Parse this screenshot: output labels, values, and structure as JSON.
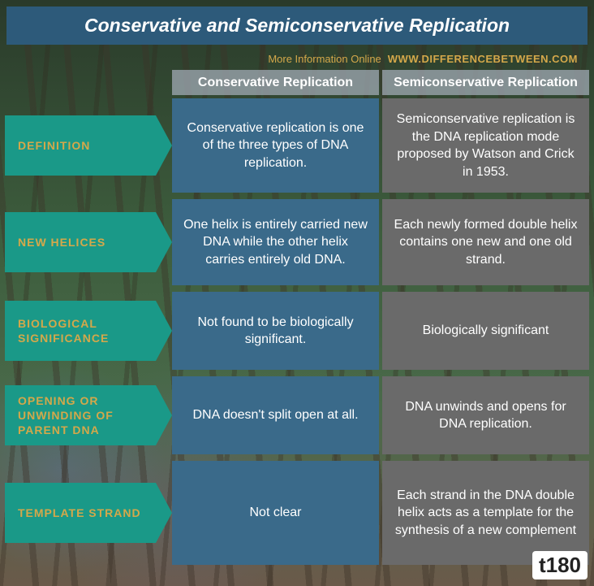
{
  "title": "Conservative and Semiconservative Replication",
  "more_info": "More Information  Online",
  "website": "WWW.DIFFERENCEBETWEEN.COM",
  "colors": {
    "header_bg": "#2d5a7a",
    "label_bg": "#1a9988",
    "label_text": "#d4a84a",
    "col1_bg": "#3a6a8a",
    "col2_bg": "#6a6a6a",
    "col_head_bg": "rgba(160,170,180,0.75)",
    "text": "#ffffff"
  },
  "columns": [
    "Conservative Replication",
    "Semiconservative Replication"
  ],
  "rows": [
    {
      "label": "DEFINITION",
      "col1": "Conservative replication is one of the three types of DNA replication.",
      "col2": "Semiconservative replication is the DNA replication mode proposed by Watson and Crick in 1953."
    },
    {
      "label": "NEW HELICES",
      "col1": "One helix is entirely carried new DNA while the other helix carries entirely old DNA.",
      "col2": "Each newly formed double helix contains one new and one old strand."
    },
    {
      "label": "BIOLOGICAL SIGNIFICANCE",
      "col1": "Not found to be biologically significant.",
      "col2": "Biologically significant"
    },
    {
      "label": "OPENING OR UNWINDING OF PARENT DNA",
      "col1": "DNA doesn't split open at all.",
      "col2": "DNA unwinds and opens for DNA replication."
    },
    {
      "label": "TEMPLATE STRAND",
      "col1": "Not clear",
      "col2": "Each strand in the DNA double helix acts as a template for the synthesis of a new complement"
    }
  ],
  "watermark": "t180"
}
